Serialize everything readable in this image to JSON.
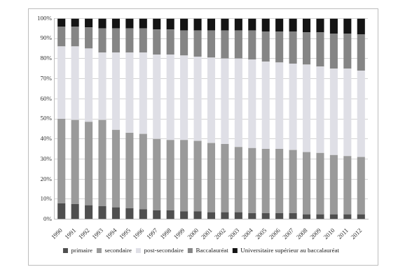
{
  "chart_data": {
    "type": "bar",
    "stacked": true,
    "grid": true,
    "legend": "bottom",
    "categories": [
      "1990",
      "1991",
      "1992",
      "1993",
      "1994",
      "1995",
      "1996",
      "1997",
      "1998",
      "1999",
      "2000",
      "2001",
      "2002",
      "2003",
      "2004",
      "2005",
      "2006",
      "2007",
      "2008",
      "2009",
      "2010",
      "2011",
      "2012"
    ],
    "series": [
      {
        "name": "primaire",
        "color": "#4f4f4f",
        "values": [
          8,
          7.5,
          7,
          6.5,
          6,
          5.5,
          5,
          4.5,
          4.5,
          4,
          4,
          3.5,
          3.5,
          3.5,
          3,
          3,
          3,
          3,
          2.5,
          2.5,
          2.5,
          2.5,
          2.5
        ]
      },
      {
        "name": "secondaire",
        "color": "#9a9a9a",
        "values": [
          42,
          42,
          41.5,
          43,
          38.5,
          37.5,
          37.5,
          35.5,
          35,
          35.5,
          35,
          34.5,
          34,
          32.5,
          32.5,
          32,
          32,
          31.5,
          31,
          30.5,
          29.5,
          29,
          28.5
        ]
      },
      {
        "name": "post-secondaire",
        "color": "#dfdfe6",
        "values": [
          36,
          36.5,
          36.5,
          33.5,
          38.5,
          40,
          40.5,
          42,
          42.5,
          42,
          42,
          42.5,
          42.5,
          44,
          44,
          43.5,
          43,
          43,
          43.5,
          43,
          43,
          43.5,
          43
        ]
      },
      {
        "name": "Baccalauréat",
        "color": "#858585",
        "values": [
          10,
          10,
          10.5,
          12,
          12,
          12,
          12,
          12.5,
          12.5,
          12.5,
          13,
          13.5,
          14,
          14,
          14.5,
          15,
          15.5,
          16,
          16,
          17,
          17.5,
          17.5,
          18
        ]
      },
      {
        "name": "Universitaire supérieur au baccalauréat",
        "color": "#141414",
        "values": [
          4,
          4,
          4.5,
          5,
          5,
          5,
          5,
          5.5,
          5.5,
          6,
          6,
          6,
          6,
          6,
          6,
          6.5,
          6.5,
          6.5,
          7,
          7,
          7.5,
          7.5,
          8
        ]
      }
    ],
    "ylim": [
      0,
      100
    ],
    "yticks": [
      {
        "value": 0,
        "label": "0%"
      },
      {
        "value": 10,
        "label": "10%"
      },
      {
        "value": 20,
        "label": "20%"
      },
      {
        "value": 30,
        "label": "30%"
      },
      {
        "value": 40,
        "label": "40%"
      },
      {
        "value": 50,
        "label": "50%"
      },
      {
        "value": 60,
        "label": "60%"
      },
      {
        "value": 70,
        "label": "70%"
      },
      {
        "value": 80,
        "label": "80%"
      },
      {
        "value": 90,
        "label": "90%"
      },
      {
        "value": 100,
        "label": "100%"
      }
    ]
  }
}
